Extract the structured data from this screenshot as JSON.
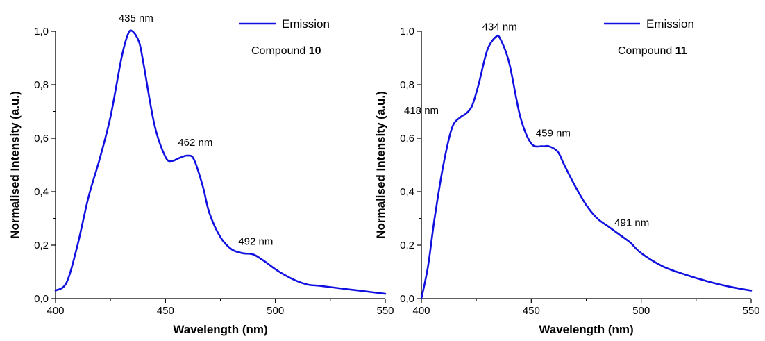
{
  "chart_data": [
    {
      "type": "line",
      "xlabel": "Wavelength (nm)",
      "ylabel": "Normalised Intensity (a.u.)",
      "xlim": [
        400,
        550
      ],
      "ylim": [
        0,
        1.0
      ],
      "x_ticks": [
        "400",
        "450",
        "500",
        "550"
      ],
      "y_ticks": [
        "0,0",
        "0,2",
        "0,4",
        "0,6",
        "0,8",
        "1,0"
      ],
      "legend": {
        "label": "Emission",
        "placement": "top-right"
      },
      "compound_label": {
        "prefix": "Compound",
        "number": "10"
      },
      "series": [
        {
          "name": "Emission",
          "color": "#1010e0",
          "x": [
            400,
            405,
            410,
            415,
            420,
            425,
            430,
            433,
            435,
            438,
            440,
            445,
            450,
            453,
            456,
            460,
            463,
            467,
            470,
            475,
            480,
            485,
            490,
            495,
            500,
            505,
            510,
            515,
            520,
            530,
            540,
            550
          ],
          "y": [
            0.03,
            0.06,
            0.2,
            0.38,
            0.52,
            0.68,
            0.9,
            0.99,
            1.0,
            0.96,
            0.88,
            0.65,
            0.53,
            0.515,
            0.525,
            0.535,
            0.52,
            0.42,
            0.32,
            0.23,
            0.185,
            0.17,
            0.165,
            0.14,
            0.11,
            0.085,
            0.065,
            0.052,
            0.048,
            0.038,
            0.028,
            0.018
          ]
        }
      ],
      "annotations": [
        {
          "text": "435 nm",
          "x": 435,
          "y": 1.0
        },
        {
          "text": "462 nm",
          "x": 462,
          "y": 0.535
        },
        {
          "text": "492 nm",
          "x": 492,
          "y": 0.165
        }
      ]
    },
    {
      "type": "line",
      "xlabel": "Wavelength (nm)",
      "ylabel": "Normalised Intensity (a.u.)",
      "xlim": [
        400,
        550
      ],
      "ylim": [
        0,
        1.0
      ],
      "x_ticks": [
        "400",
        "450",
        "500",
        "550"
      ],
      "y_ticks": [
        "0,0",
        "0,2",
        "0,4",
        "0,6",
        "0,8",
        "1,0"
      ],
      "legend": {
        "label": "Emission",
        "placement": "top-right"
      },
      "compound_label": {
        "prefix": "Compound",
        "number": "11"
      },
      "series": [
        {
          "name": "Emission",
          "color": "#1010e0",
          "x": [
            400,
            403,
            406,
            410,
            414,
            418,
            420,
            423,
            426,
            430,
            434,
            436,
            440,
            445,
            450,
            455,
            458,
            462,
            465,
            470,
            475,
            480,
            485,
            490,
            495,
            500,
            510,
            520,
            530,
            540,
            550
          ],
          "y": [
            0.0,
            0.12,
            0.3,
            0.5,
            0.64,
            0.68,
            0.69,
            0.72,
            0.8,
            0.93,
            0.98,
            0.97,
            0.88,
            0.68,
            0.58,
            0.57,
            0.57,
            0.55,
            0.5,
            0.42,
            0.35,
            0.3,
            0.27,
            0.24,
            0.21,
            0.17,
            0.12,
            0.09,
            0.065,
            0.045,
            0.03
          ]
        }
      ],
      "annotations": [
        {
          "text": "418 nm",
          "x": 418,
          "y": 0.68
        },
        {
          "text": "434 nm",
          "x": 434,
          "y": 0.98
        },
        {
          "text": "459 nm",
          "x": 459,
          "y": 0.57
        },
        {
          "text": "491 nm",
          "x": 491,
          "y": 0.24
        }
      ]
    }
  ]
}
